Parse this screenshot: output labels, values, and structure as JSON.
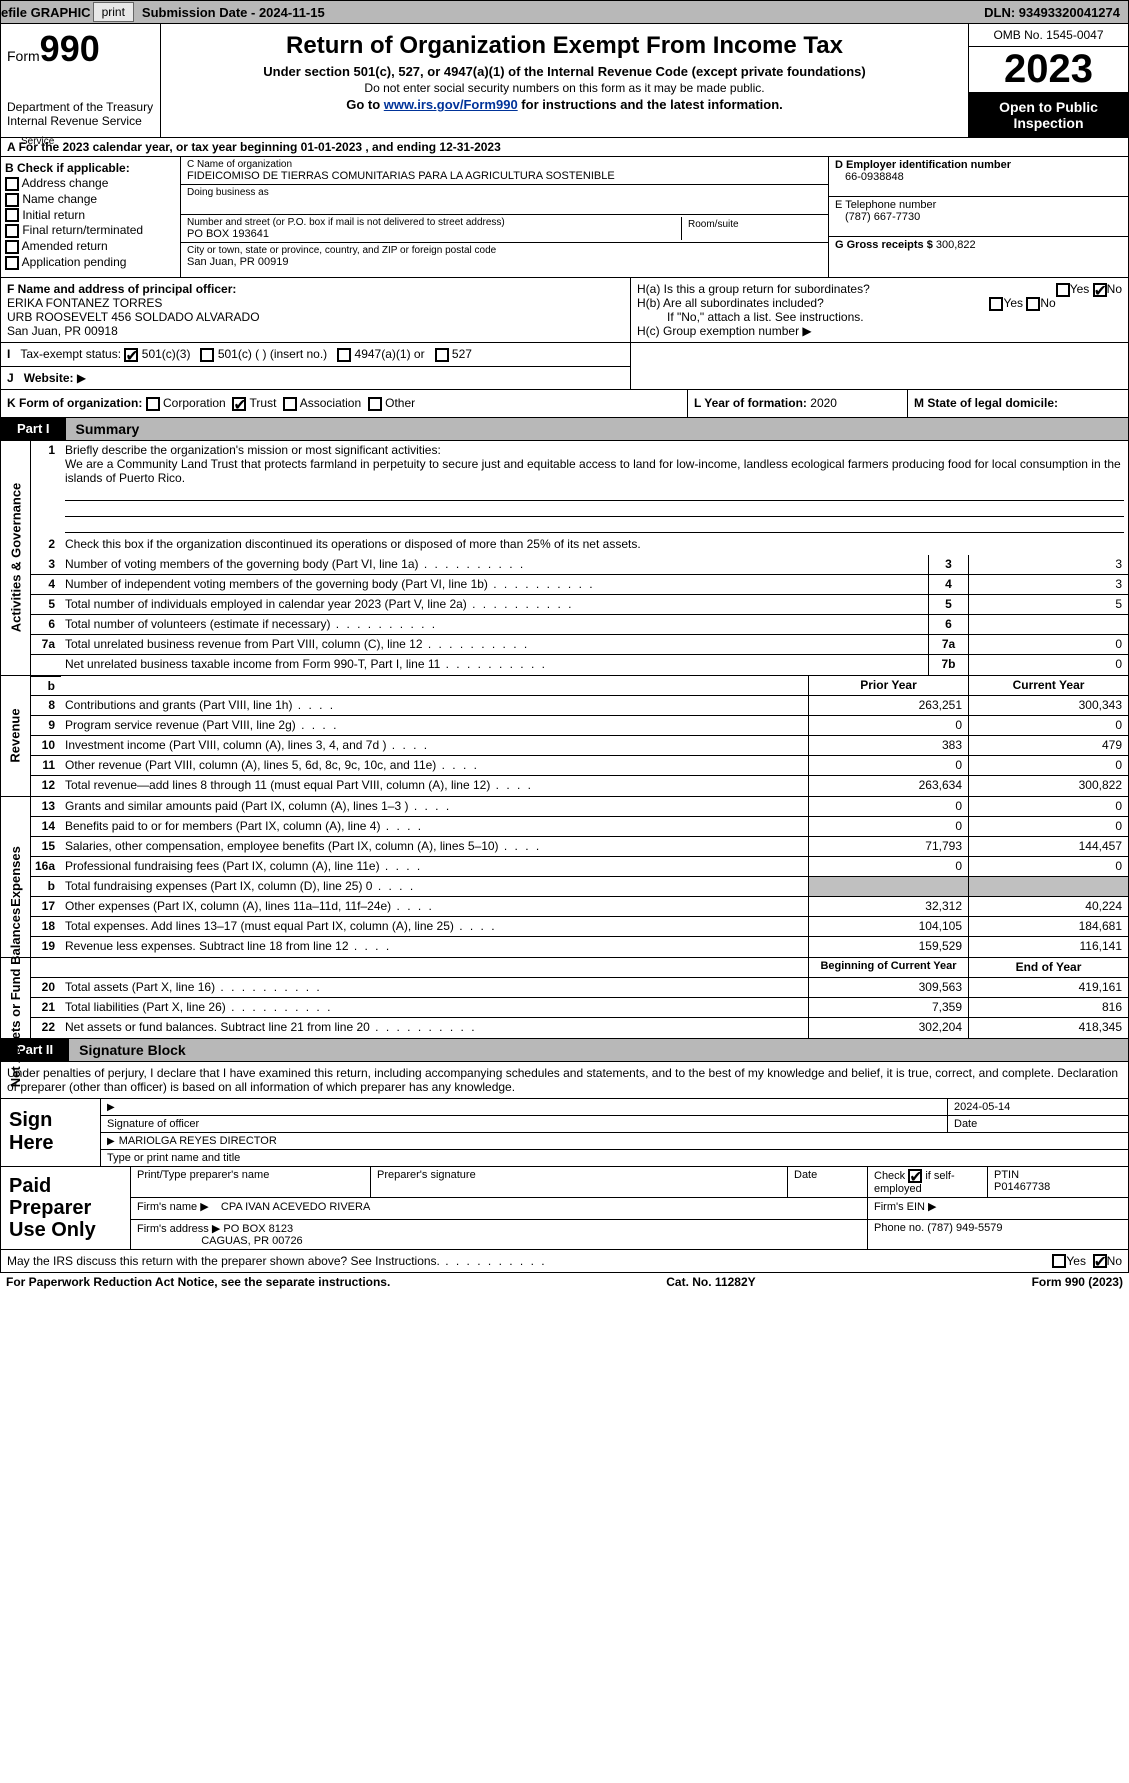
{
  "colors": {
    "topbar_bg": "#b8b8b8",
    "button_bg": "#e8e8e8",
    "black": "#000000",
    "white": "#ffffff",
    "grey_fill": "#c0c0c0",
    "link": "#003399"
  },
  "topbar": {
    "efile": "efile GRAPHIC",
    "print": "print",
    "submission": "Submission Date - 2024-11-15",
    "dln": "DLN: 93493320041274"
  },
  "header": {
    "form_word": "Form",
    "form_num": "990",
    "dept": "Department of the Treasury Internal Revenue Service",
    "title": "Return of Organization Exempt From Income Tax",
    "sub1": "Under section 501(c), 527, or 4947(a)(1) of the Internal Revenue Code (except private foundations)",
    "sub2": "Do not enter social security numbers on this form as it may be made public.",
    "sub3_pre": "Go to ",
    "sub3_link": "www.irs.gov/Form990",
    "sub3_post": " for instructions and the latest information.",
    "omb": "OMB No. 1545-0047",
    "year": "2023",
    "inspection": "Open to Public Inspection"
  },
  "row_a": "For the 2023 calendar year, or tax year beginning 01-01-2023    , and ending 12-31-2023",
  "section_b": {
    "label": "B Check if applicable:",
    "items": [
      "Address change",
      "Name change",
      "Initial return",
      "Final return/terminated",
      "Amended return",
      "Application pending"
    ]
  },
  "section_c": {
    "name_hdr": "C Name of organization",
    "name": "FIDEICOMISO DE TIERRAS COMUNITARIAS PARA LA AGRICULTURA SOSTENIBLE",
    "dba_hdr": "Doing business as",
    "dba": "",
    "addr_hdr": "Number and street (or P.O. box if mail is not delivered to street address)",
    "addr": "PO BOX 193641",
    "room_hdr": "Room/suite",
    "city_hdr": "City or town, state or province, country, and ZIP or foreign postal code",
    "city": "San Juan, PR  00919"
  },
  "section_d": {
    "ein_hdr": "D Employer identification number",
    "ein": "66-0938848",
    "phone_hdr": "E Telephone number",
    "phone": "(787) 667-7730",
    "gross_hdr": "G Gross receipts $",
    "gross": "300,822"
  },
  "section_f": {
    "hdr": "F  Name and address of principal officer:",
    "name": "ERIKA FONTANEZ TORRES",
    "addr1": "URB ROOSEVELT 456 SOLDADO ALVARADO",
    "addr2": "San Juan, PR  00918"
  },
  "section_h": {
    "ha": "H(a)  Is this a group return for subordinates?",
    "hb": "H(b)  Are all subordinates included?",
    "hb_note": "If \"No,\" attach a list. See instructions.",
    "hc": "H(c)  Group exemption number ",
    "yes": "Yes",
    "no": "No"
  },
  "row_i": {
    "label": "Tax-exempt status:",
    "opt1": "501(c)(3)",
    "opt2": "501(c) (  ) (insert no.)",
    "opt3": "4947(a)(1) or",
    "opt4": "527"
  },
  "row_j": {
    "label": "Website:",
    "arrow": "▶"
  },
  "row_k": {
    "label": "K Form of organization:",
    "opts": [
      "Corporation",
      "Trust",
      "Association",
      "Other"
    ],
    "checked": "Trust"
  },
  "row_l": {
    "label": "L Year of formation:",
    "val": "2020"
  },
  "row_m": {
    "label": "M State of legal domicile:"
  },
  "part1": {
    "tag": "Part I",
    "title": "Summary"
  },
  "mission": {
    "label": "Briefly describe the organization's mission or most significant activities:",
    "text": "We are a Community Land Trust that protects farmland in perpetuity to secure just and equitable access to land for low-income, landless ecological farmers producing food for local consumption in the islands of Puerto Rico."
  },
  "line2": "Check this box      if the organization discontinued its operations or disposed of more than 25% of its net assets.",
  "governance": {
    "rows": [
      {
        "n": "3",
        "d": "Number of voting members of the governing body (Part VI, line 1a)",
        "box": "3",
        "v": "3"
      },
      {
        "n": "4",
        "d": "Number of independent voting members of the governing body (Part VI, line 1b)",
        "box": "4",
        "v": "3"
      },
      {
        "n": "5",
        "d": "Total number of individuals employed in calendar year 2023 (Part V, line 2a)",
        "box": "5",
        "v": "5"
      },
      {
        "n": "6",
        "d": "Total number of volunteers (estimate if necessary)",
        "box": "6",
        "v": ""
      },
      {
        "n": "7a",
        "d": "Total unrelated business revenue from Part VIII, column (C), line 12",
        "box": "7a",
        "v": "0"
      },
      {
        "n": "",
        "d": "Net unrelated business taxable income from Form 990-T, Part I, line 11",
        "box": "7b",
        "v": "0"
      }
    ]
  },
  "revenue": {
    "hdr_prior": "Prior Year",
    "hdr_current": "Current Year",
    "rows": [
      {
        "n": "8",
        "d": "Contributions and grants (Part VIII, line 1h)",
        "p": "263,251",
        "c": "300,343"
      },
      {
        "n": "9",
        "d": "Program service revenue (Part VIII, line 2g)",
        "p": "0",
        "c": "0"
      },
      {
        "n": "10",
        "d": "Investment income (Part VIII, column (A), lines 3, 4, and 7d )",
        "p": "383",
        "c": "479"
      },
      {
        "n": "11",
        "d": "Other revenue (Part VIII, column (A), lines 5, 6d, 8c, 9c, 10c, and 11e)",
        "p": "0",
        "c": "0"
      },
      {
        "n": "12",
        "d": "Total revenue—add lines 8 through 11 (must equal Part VIII, column (A), line 12)",
        "p": "263,634",
        "c": "300,822"
      }
    ]
  },
  "expenses": {
    "rows": [
      {
        "n": "13",
        "d": "Grants and similar amounts paid (Part IX, column (A), lines 1–3 )",
        "p": "0",
        "c": "0"
      },
      {
        "n": "14",
        "d": "Benefits paid to or for members (Part IX, column (A), line 4)",
        "p": "0",
        "c": "0"
      },
      {
        "n": "15",
        "d": "Salaries, other compensation, employee benefits (Part IX, column (A), lines 5–10)",
        "p": "71,793",
        "c": "144,457"
      },
      {
        "n": "16a",
        "d": "Professional fundraising fees (Part IX, column (A), line 11e)",
        "p": "0",
        "c": "0"
      },
      {
        "n": "b",
        "d": "Total fundraising expenses (Part IX, column (D), line 25) 0",
        "p": "",
        "c": "",
        "grey": true
      },
      {
        "n": "17",
        "d": "Other expenses (Part IX, column (A), lines 11a–11d, 11f–24e)",
        "p": "32,312",
        "c": "40,224"
      },
      {
        "n": "18",
        "d": "Total expenses. Add lines 13–17 (must equal Part IX, column (A), line 25)",
        "p": "104,105",
        "c": "184,681"
      },
      {
        "n": "19",
        "d": "Revenue less expenses. Subtract line 18 from line 12",
        "p": "159,529",
        "c": "116,141"
      }
    ]
  },
  "netassets": {
    "hdr_begin": "Beginning of Current Year",
    "hdr_end": "End of Year",
    "rows": [
      {
        "n": "20",
        "d": "Total assets (Part X, line 16)",
        "p": "309,563",
        "c": "419,161"
      },
      {
        "n": "21",
        "d": "Total liabilities (Part X, line 26)",
        "p": "7,359",
        "c": "816"
      },
      {
        "n": "22",
        "d": "Net assets or fund balances. Subtract line 21 from line 20",
        "p": "302,204",
        "c": "418,345"
      }
    ]
  },
  "tabs": {
    "gov": "Activities & Governance",
    "rev": "Revenue",
    "exp": "Expenses",
    "net": "Net Assets or Fund Balances"
  },
  "part2": {
    "tag": "Part II",
    "title": "Signature Block"
  },
  "sig_intro": "Under penalties of perjury, I declare that I have examined this return, including accompanying schedules and statements, and to the best of my knowledge and belief, it is true, correct, and complete. Declaration of preparer (other than officer) is based on all information of which preparer has any knowledge.",
  "sign_here": {
    "label": "Sign Here",
    "sig_of_officer": "Signature of officer",
    "date": "Date",
    "date_val": "2024-05-14",
    "name": "MARIOLGA REYES  DIRECTOR",
    "type_or_print": "Type or print name and title"
  },
  "paid": {
    "label": "Paid Preparer Use Only",
    "print_name_hdr": "Print/Type preparer's name",
    "sig_hdr": "Preparer's signature",
    "date_hdr": "Date",
    "check_hdr": "Check",
    "self_emp": "if self-employed",
    "ptin_hdr": "PTIN",
    "ptin": "P01467738",
    "firm_name_hdr": "Firm's name",
    "firm_name": "CPA IVAN ACEVEDO RIVERA",
    "firm_ein_hdr": "Firm's EIN",
    "firm_addr_hdr": "Firm's address",
    "firm_addr1": "PO BOX 8123",
    "firm_addr2": "CAGUAS, PR  00726",
    "phone_hdr": "Phone no.",
    "phone": "(787) 949-5579"
  },
  "discuss": {
    "text": "May the IRS discuss this return with the preparer shown above? See Instructions.",
    "yes": "Yes",
    "no": "No"
  },
  "footer": {
    "left": "For Paperwork Reduction Act Notice, see the separate instructions.",
    "mid": "Cat. No. 11282Y",
    "right": "Form 990 (2023)"
  }
}
